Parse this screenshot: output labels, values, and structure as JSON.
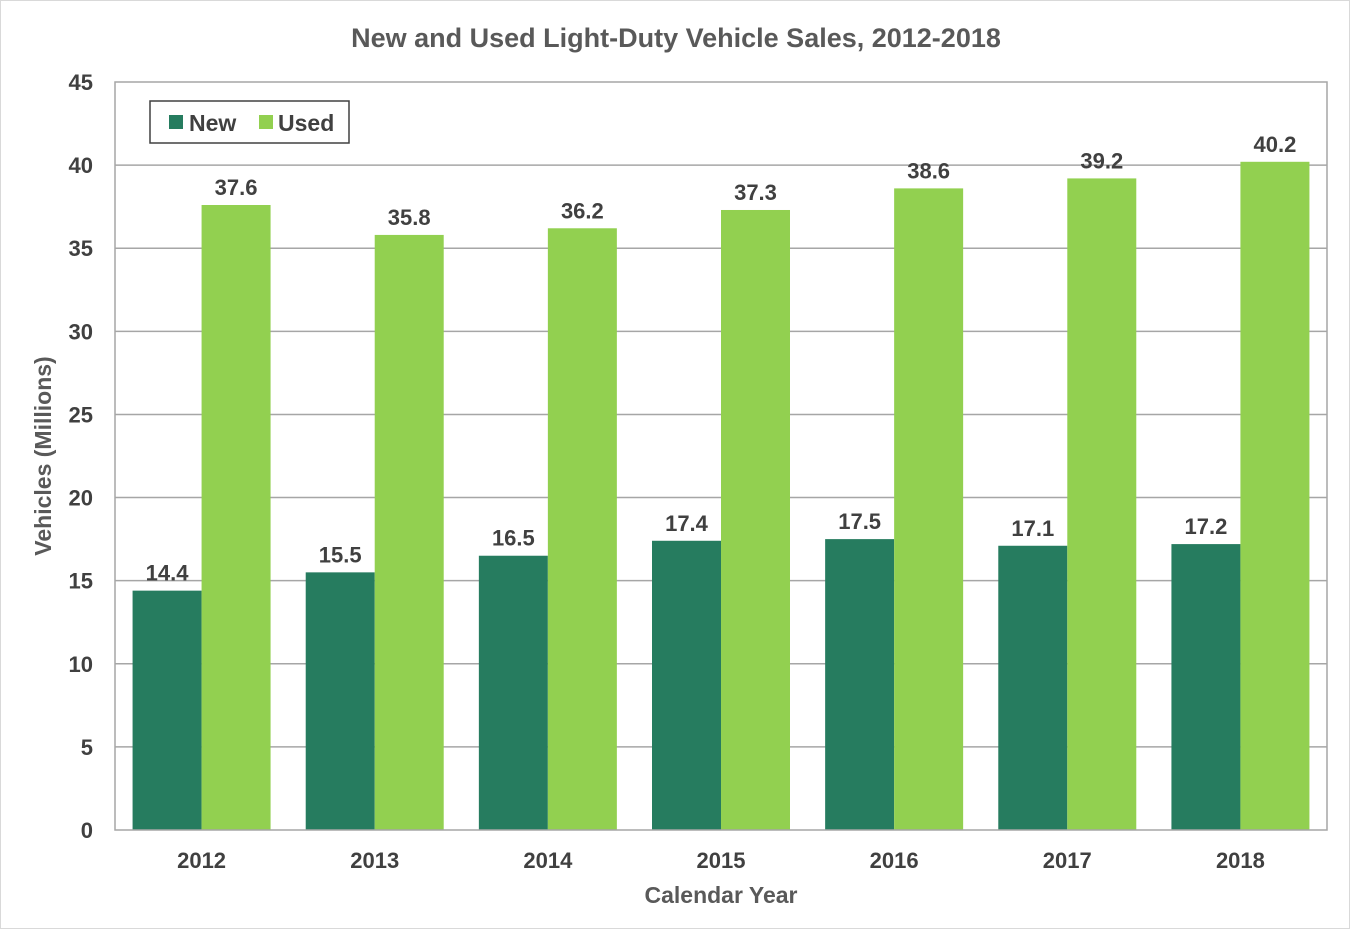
{
  "chart_data": {
    "type": "bar",
    "title": "New and Used Light-Duty Vehicle Sales, 2012-2018",
    "xlabel": "Calendar Year",
    "ylabel": "Vehicles (Millions)",
    "ylim": [
      0,
      45
    ],
    "ytick_step": 5,
    "grid": true,
    "legend_position": "top-left",
    "categories": [
      "2012",
      "2013",
      "2014",
      "2015",
      "2016",
      "2017",
      "2018"
    ],
    "series": [
      {
        "name": "New",
        "color": "#267c5f",
        "values": [
          14.4,
          15.5,
          16.5,
          17.4,
          17.5,
          17.1,
          17.2
        ]
      },
      {
        "name": "Used",
        "color": "#92d050",
        "values": [
          37.6,
          35.8,
          36.2,
          37.3,
          38.6,
          39.2,
          40.2
        ]
      }
    ]
  }
}
